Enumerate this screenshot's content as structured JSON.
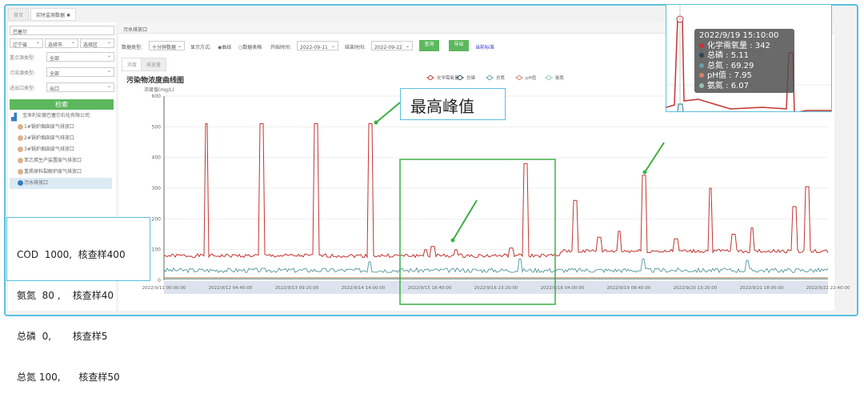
{
  "tabs": [
    "首页",
    "实时监测数据"
  ],
  "sidebar": {
    "search_value": "巴塞尔",
    "province": "辽宁省",
    "city": "选择市",
    "district": "选择区",
    "filters": [
      {
        "label": "重点源类型:",
        "value": "全部"
      },
      {
        "label": "污染源类型:",
        "value": "全部"
      },
      {
        "label": "进出口类型:",
        "value": "出口"
      }
    ],
    "search_button": "检索",
    "company": "宝来利安德巴塞尔石化有限公司",
    "outlets": [
      "1#锅炉烟囱废气排放口",
      "2#锅炉烟囱废气排放口",
      "3#锅炉烟囱废气排放口",
      "苯乙烯生产装置废气排放口",
      "重质原料裂解炉废气排放口",
      "污水排放口"
    ]
  },
  "main": {
    "header": "污水排放口",
    "data_type_label": "数据类型:",
    "data_type": "十分钟数据",
    "display_label": "显示方式:",
    "display_curve": "◉曲线",
    "display_table": "○数据表格",
    "start_label": "开始时间:",
    "start": "2022-09-11",
    "end_label": "结束时间:",
    "end": "2022-09-22",
    "query": "查询",
    "export": "导出",
    "standard": "当前标准",
    "subtabs": [
      "浓度",
      "排放量"
    ]
  },
  "chart_data": {
    "type": "line",
    "title": "污染物浓度曲线图",
    "ylabel": "浓度值(mg/L)",
    "ylim": [
      0,
      600
    ],
    "yticks": [
      0,
      100,
      200,
      300,
      400,
      500,
      600
    ],
    "xticks": [
      "2022/9/11 00:00:00",
      "2022/9/12 04:40:00",
      "2022/9/13 09:20:00",
      "2022/9/14 14:00:00",
      "2022/9/15 18:40:00",
      "2022/9/16 23:20:00",
      "2022/9/18 04:00:00",
      "2022/9/19 08:40:00",
      "2022/9/20 13:20:00",
      "2022/9/21 18:00:00",
      "2022/9/22 22:40:00"
    ],
    "legend": [
      "化学需氧量",
      "总磷",
      "总氮",
      "pH值",
      "氨氮"
    ],
    "series": [
      {
        "name": "化学需氧量",
        "color": "#c23531",
        "points": [
          [
            "2022/9/11 00:00",
            80
          ],
          [
            "2022/9/11 18:20",
            510
          ],
          [
            "2022/9/12 18:00",
            510
          ],
          [
            "2022/9/13 17:40",
            510
          ],
          [
            "2022/9/14 17:00",
            510
          ],
          [
            "2022/9/15 17:00",
            100
          ],
          [
            "2022/9/15 20:00",
            110
          ],
          [
            "2022/9/16 06:00",
            100
          ],
          [
            "2022/9/17 06:00",
            105
          ],
          [
            "2022/9/17 12:00",
            380
          ],
          [
            "2022/9/18 09:40",
            260
          ],
          [
            "2022/9/18 20:00",
            140
          ],
          [
            "2022/9/19 04:40",
            160
          ],
          [
            "2022/9/19 15:10",
            342
          ],
          [
            "2022/9/20 05:00",
            135
          ],
          [
            "2022/9/20 20:00",
            300
          ],
          [
            "2022/9/21 06:00",
            150
          ],
          [
            "2022/9/21 14:00",
            170
          ],
          [
            "2022/9/22 08:00",
            240
          ],
          [
            "2022/9/22 13:40",
            305
          ],
          [
            "2022/9/22 23:00",
            90
          ]
        ]
      },
      {
        "name": "总磷",
        "color": "#2f4554",
        "points": [
          [
            "2022/9/11 00:00",
            5
          ]
        ]
      },
      {
        "name": "总氮",
        "color": "#61a0a8",
        "points": [
          [
            "2022/9/11 00:00",
            35
          ],
          [
            "2022/9/14 17:00",
            60
          ],
          [
            "2022/9/17 10:00",
            70
          ],
          [
            "2022/9/19 15:10",
            69.29
          ],
          [
            "2022/9/21 12:00",
            65
          ]
        ]
      },
      {
        "name": "pH值",
        "color": "#d48265",
        "points": [
          [
            "2022/9/11 00:00",
            8
          ]
        ]
      },
      {
        "name": "氨氮",
        "color": "#91c7ae",
        "points": [
          [
            "2022/9/11 00:00",
            6
          ]
        ]
      }
    ]
  },
  "tooltip": {
    "time": "2022/9/19 15:10:00",
    "rows": [
      {
        "name": "化学需氧量",
        "value": "342",
        "color": "#c23531"
      },
      {
        "name": "总磷",
        "value": "5.11",
        "color": "#2f4554"
      },
      {
        "name": "总氮",
        "value": "69.29",
        "color": "#61a0a8"
      },
      {
        "name": "pH值",
        "value": "7.95",
        "color": "#d48265"
      },
      {
        "name": "氨氮",
        "value": "6.07",
        "color": "#91c7ae"
      }
    ]
  },
  "annotations": {
    "peak": "最高峰值",
    "limits": [
      "COD  1000,  核查样400",
      "氨氮  80 ,    核查样40",
      "总磷  0,       核查样5",
      "总氮 100,      核查样50"
    ]
  }
}
